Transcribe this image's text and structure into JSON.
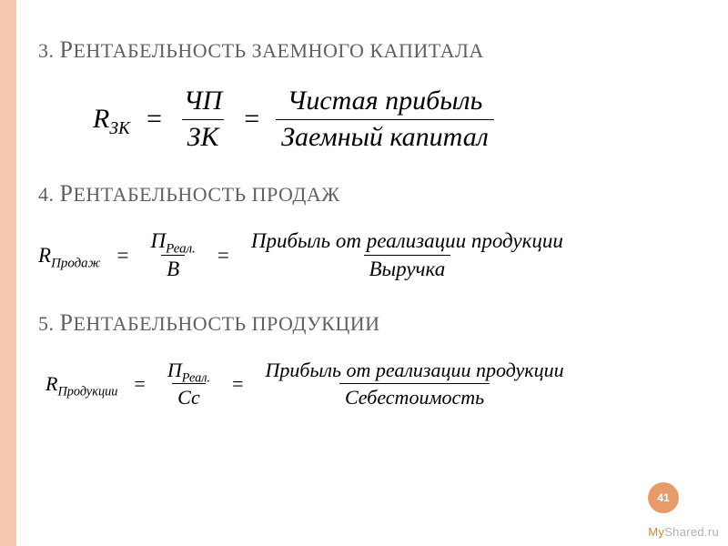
{
  "page_number": "41",
  "watermark": {
    "prefix": "My",
    "suffix": "Shared.ru"
  },
  "accent_color": "#f4c9b0",
  "badge_color": "#e79b6b",
  "heading_color": "#606060",
  "sections": [
    {
      "number": "3.",
      "title_first": "Р",
      "title_rest": "ЕНТАБЕЛЬНОСТЬ ЗАЕМНОГО КАПИТАЛА",
      "formula": {
        "lhs_main": "R",
        "lhs_sub": "ЗК",
        "frac1_num": "ЧП",
        "frac1_den": "ЗК",
        "frac2_num": "Чистая прибыль",
        "frac2_den": "Заемный капитал"
      }
    },
    {
      "number": "4.",
      "title_first": "Р",
      "title_rest": "ЕНТАБЕЛЬНОСТЬ ПРОДАЖ",
      "formula": {
        "lhs_main": "R",
        "lhs_sub": "Продаж",
        "frac1_num_main": "П",
        "frac1_num_sub": "Реал.",
        "frac1_den": "В",
        "frac2_num": "Прибыль от реализации продукции",
        "frac2_den": "Выручка"
      }
    },
    {
      "number": "5.",
      "title_first": "Р",
      "title_rest": "ЕНТАБЕЛЬНОСТЬ ПРОДУКЦИИ",
      "formula": {
        "lhs_main": "R",
        "lhs_sub": "Продукции",
        "frac1_num_main": "П",
        "frac1_num_sub": "Реал.",
        "frac1_den": "Сс",
        "frac2_num": "Прибыль от реализации продукции",
        "frac2_den": "Себестоимость"
      }
    }
  ]
}
